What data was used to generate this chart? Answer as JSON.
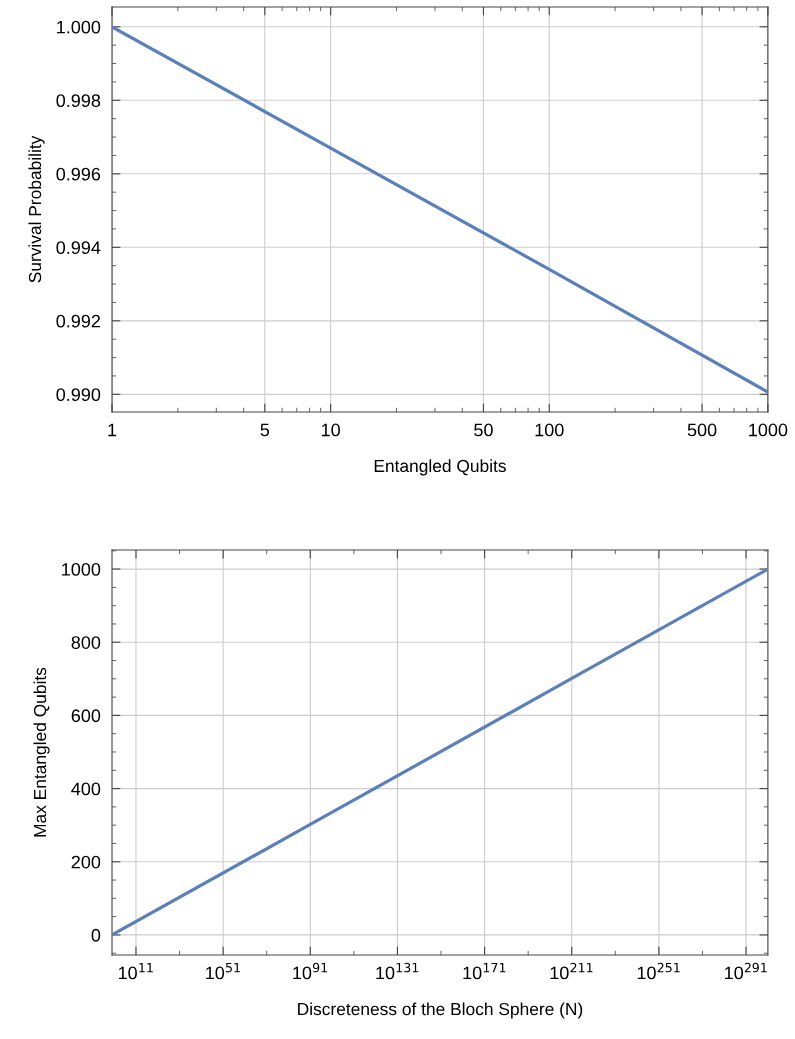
{
  "chart_data": [
    {
      "type": "line",
      "xlabel": "Entangled Qubits",
      "ylabel": "Survival Probability",
      "log": "x",
      "grid": true,
      "x": [
        1,
        10,
        100,
        1000
      ],
      "series": [
        {
          "color": "#5b7fb8",
          "values": [
            1.0,
            0.9967,
            0.9934,
            0.99006
          ]
        }
      ],
      "xlim": [
        1,
        1000
      ],
      "xticks": [
        1,
        {
          "value": 2,
          "label": null
        },
        {
          "value": 3,
          "label": null
        },
        {
          "value": 4,
          "label": null
        },
        5,
        {
          "value": 6,
          "label": null
        },
        {
          "value": 7,
          "label": null
        },
        {
          "value": 8,
          "label": null
        },
        {
          "value": 9,
          "label": null
        },
        10,
        {
          "value": 20,
          "label": null
        },
        {
          "value": 30,
          "label": null
        },
        {
          "value": 40,
          "label": null
        },
        50,
        {
          "value": 60,
          "label": null
        },
        {
          "value": 70,
          "label": null
        },
        {
          "value": 80,
          "label": null
        },
        {
          "value": 90,
          "label": null
        },
        100,
        {
          "value": 200,
          "label": null
        },
        {
          "value": 300,
          "label": null
        },
        {
          "value": 400,
          "label": null
        },
        500,
        {
          "value": 600,
          "label": null
        },
        {
          "value": 700,
          "label": null
        },
        {
          "value": 800,
          "label": null
        },
        {
          "value": 900,
          "label": null
        },
        1000
      ],
      "ylim": [
        0.98952,
        1.00054
      ],
      "yticks": [
        {
          "value": 0.99,
          "label": "0.990"
        },
        {
          "value": 0.9905,
          "label": null
        },
        {
          "value": 0.991,
          "label": null
        },
        {
          "value": 0.9915,
          "label": null
        },
        {
          "value": 0.992,
          "label": "0.992"
        },
        {
          "value": 0.9925,
          "label": null
        },
        {
          "value": 0.993,
          "label": null
        },
        {
          "value": 0.9935,
          "label": null
        },
        {
          "value": 0.994,
          "label": "0.994"
        },
        {
          "value": 0.9945,
          "label": null
        },
        {
          "value": 0.995,
          "label": null
        },
        {
          "value": 0.9955,
          "label": null
        },
        {
          "value": 0.996,
          "label": "0.996"
        },
        {
          "value": 0.9965,
          "label": null
        },
        {
          "value": 0.997,
          "label": null
        },
        {
          "value": 0.9975,
          "label": null
        },
        {
          "value": 0.998,
          "label": "0.998"
        },
        {
          "value": 0.9985,
          "label": null
        },
        {
          "value": 0.999,
          "label": null
        },
        {
          "value": 0.9995,
          "label": null
        },
        {
          "value": 1.0,
          "label": "1.000"
        }
      ]
    },
    {
      "type": "line",
      "xlabel": "Discreteness of the Bloch Sphere (N)",
      "ylabel": "Max Entangled Qubits",
      "log": "x",
      "grid": true,
      "x": [
        1,
        1e+91,
        1e+211,
        1.07e+301
      ],
      "series": [
        {
          "color": "#5b7fb8",
          "values": [
            0,
            302,
            701,
            1000
          ]
        }
      ],
      "xlim": [
        1,
        1.07e+301
      ],
      "xticks": [
        {
          "value": 100000000000.0,
          "label": "10$^{11}$"
        },
        {
          "value": 1e+31,
          "label": null
        },
        {
          "value": 1e+51,
          "label": "10$^{51}$"
        },
        {
          "value": 1e+71,
          "label": null
        },
        {
          "value": 1e+91,
          "label": "10$^{91}$"
        },
        {
          "value": 1e+111,
          "label": null
        },
        {
          "value": 1e+131,
          "label": "10$^{131}$"
        },
        {
          "value": 1e+151,
          "label": null
        },
        {
          "value": 1e+171,
          "label": "10$^{171}$"
        },
        {
          "value": 1e+191,
          "label": null
        },
        {
          "value": 1e+211,
          "label": "10$^{211}$"
        },
        {
          "value": 1e+231,
          "label": null
        },
        {
          "value": 1e+251,
          "label": "10$^{251}$"
        },
        {
          "value": 1e+271,
          "label": null
        },
        {
          "value": 1e+291,
          "label": "10$^{291}$"
        }
      ],
      "ylim": [
        -55,
        1052
      ],
      "yticks": [
        {
          "value": -50,
          "label": null
        },
        0,
        {
          "value": 50,
          "label": null
        },
        {
          "value": 100,
          "label": null
        },
        {
          "value": 150,
          "label": null
        },
        200,
        {
          "value": 250,
          "label": null
        },
        {
          "value": 300,
          "label": null
        },
        {
          "value": 350,
          "label": null
        },
        400,
        {
          "value": 450,
          "label": null
        },
        {
          "value": 500,
          "label": null
        },
        {
          "value": 550,
          "label": null
        },
        600,
        {
          "value": 650,
          "label": null
        },
        {
          "value": 700,
          "label": null
        },
        {
          "value": 750,
          "label": null
        },
        800,
        {
          "value": 850,
          "label": null
        },
        {
          "value": 900,
          "label": null
        },
        {
          "value": 950,
          "label": null
        },
        1000,
        {
          "value": 1050,
          "label": null
        }
      ]
    }
  ]
}
